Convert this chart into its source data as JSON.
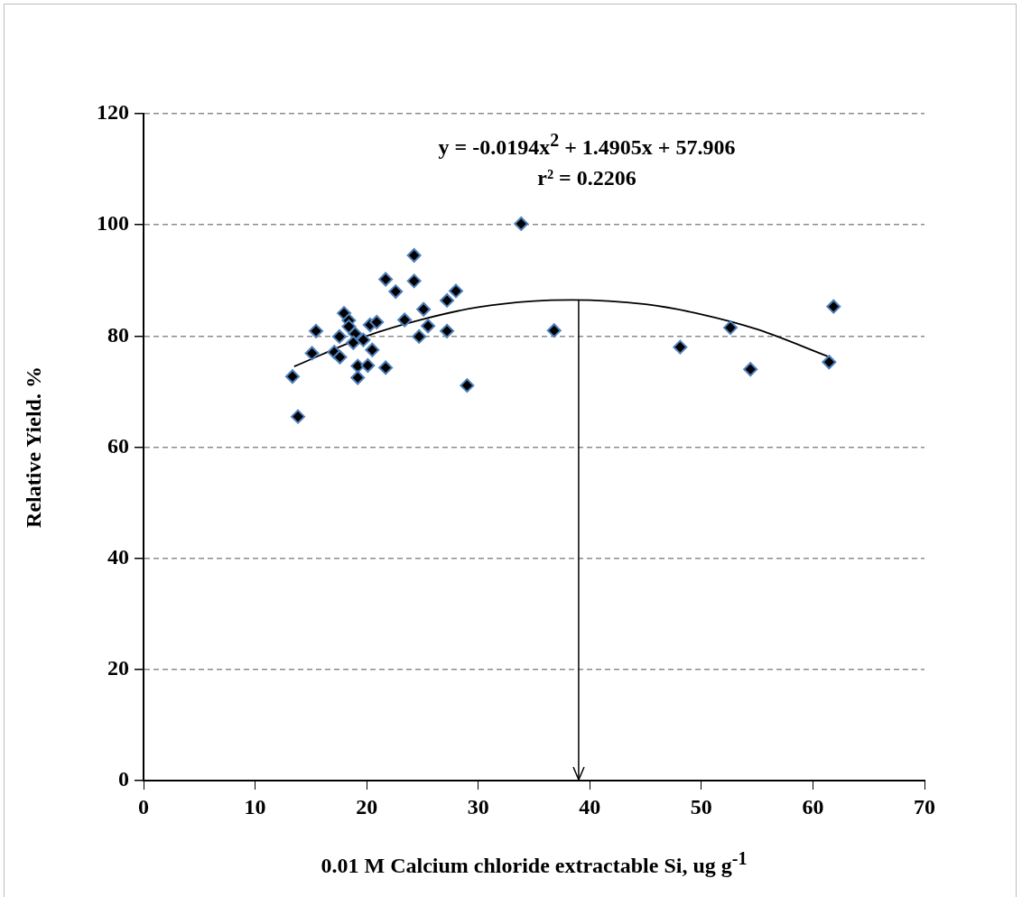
{
  "chart_data": {
    "type": "scatter",
    "xlabel": "0.01 M Calcium chloride extractable Si, ug g$^{-1}$",
    "ylabel": "Relative Yield. %",
    "annotations": [
      "y = -0.0194x$^{2}$ + 1.4905x + 57.906",
      "r² = 0.2206"
    ],
    "xlim": [
      0,
      70
    ],
    "xticks": [
      0,
      10,
      20,
      30,
      40,
      50,
      60,
      70
    ],
    "ylim": [
      0,
      120
    ],
    "yticks": [
      0,
      20,
      40,
      60,
      80,
      100,
      120
    ],
    "grid": "y",
    "legend": false,
    "marker": "diamond",
    "ref_lines": [
      {
        "axis": "x",
        "value": 39,
        "color": "#000000"
      }
    ],
    "series": [
      {
        "type": "scatter",
        "color": "#000000",
        "x": [
          13.35,
          13.84,
          15.46,
          15.1,
          17.97,
          18.4,
          18.4,
          17.56,
          18.96,
          18.8,
          19.7,
          17.1,
          17.6,
          19.2,
          20.1,
          19.2,
          20.5,
          20.3,
          20.9,
          21.7,
          21.7,
          22.6,
          23.4,
          24.25,
          24.25,
          24.7,
          25.1,
          25.5,
          27.2,
          28.0,
          27.2,
          29.0,
          33.85,
          36.8,
          48.1,
          52.6,
          54.4,
          61.85,
          61.45
        ],
        "values": [
          72.7,
          65.5,
          80.9,
          76.9,
          84.1,
          82.8,
          81.7,
          79.9,
          80.4,
          78.8,
          79.3,
          77.1,
          76.2,
          74.6,
          74.7,
          72.5,
          77.5,
          82.0,
          82.5,
          74.3,
          90.2,
          88.0,
          82.9,
          94.5,
          89.9,
          79.9,
          84.8,
          81.8,
          86.4,
          88.1,
          80.9,
          71.1,
          100.2,
          81.0,
          78.0,
          81.5,
          74.0,
          85.3,
          75.3
        ]
      },
      {
        "type": "line",
        "color": "#000000",
        "marker": "none",
        "x": [
          13.5,
          20,
          25,
          30,
          35,
          38.4,
          45,
          50,
          55,
          61.5
        ],
        "values": [
          74.5,
          80.0,
          83.0,
          85.2,
          86.3,
          86.5,
          85.7,
          83.9,
          81.2,
          76.2
        ]
      }
    ]
  }
}
